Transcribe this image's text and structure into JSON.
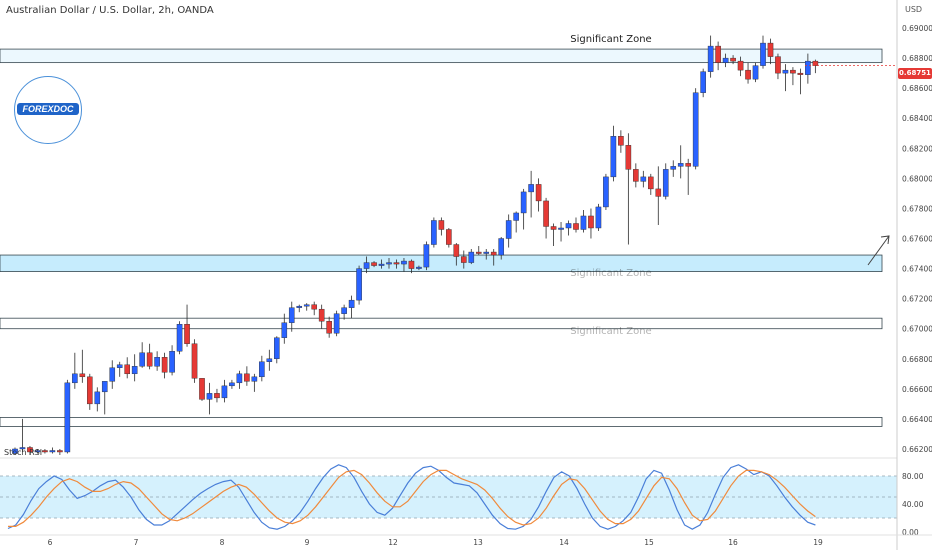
{
  "title": "Australian Dollar / U.S. Dollar, 2h, OANDA",
  "currency_label": "USD",
  "logo_text": "FOREXDOC",
  "colors": {
    "up": "#2962ff",
    "down": "#e53935",
    "zone_fill": "#b3e5fc",
    "rsi_k": "#4a7fd8",
    "rsi_d": "#f08a3c",
    "price_tag": "#e53935"
  },
  "chart_data": [
    {
      "type": "candlestick",
      "title": "Australian Dollar / U.S. Dollar, 2h, OANDA",
      "ylim": [
        0.6614,
        0.6914
      ],
      "y_ticks": [
        "0.69000",
        "0.68800",
        "0.68600",
        "0.68400",
        "0.68200",
        "0.68000",
        "0.67800",
        "0.67600",
        "0.67400",
        "0.67200",
        "0.67000",
        "0.66800",
        "0.66600",
        "0.66400",
        "0.66200"
      ],
      "x_ticks": [
        "6",
        "7",
        "8",
        "9",
        "12",
        "13",
        "14",
        "15",
        "16",
        "19"
      ],
      "last_price": "0.68751",
      "zones": [
        {
          "label": "Significant Zone",
          "low": 0.6877,
          "high": 0.6886
        },
        {
          "label": "Significant Zone",
          "low": 0.6738,
          "high": 0.6749
        },
        {
          "label": "Significant Zone",
          "low": 0.67,
          "high": 0.6707
        },
        {
          "label": "",
          "low": 0.6635,
          "high": 0.6641
        }
      ],
      "candles": [
        [
          0.6617,
          0.6621,
          0.6616,
          0.662
        ],
        [
          0.662,
          0.664,
          0.6618,
          0.6621
        ],
        [
          0.6621,
          0.6622,
          0.6616,
          0.6618
        ],
        [
          0.6618,
          0.662,
          0.6617,
          0.6619
        ],
        [
          0.6619,
          0.662,
          0.6617,
          0.6618
        ],
        [
          0.6618,
          0.6621,
          0.6617,
          0.6619
        ],
        [
          0.6619,
          0.662,
          0.6616,
          0.6618
        ],
        [
          0.6618,
          0.6666,
          0.6617,
          0.6664
        ],
        [
          0.6664,
          0.6684,
          0.666,
          0.667
        ],
        [
          0.667,
          0.6686,
          0.6664,
          0.6668
        ],
        [
          0.6668,
          0.667,
          0.6646,
          0.665
        ],
        [
          0.665,
          0.6661,
          0.6645,
          0.6658
        ],
        [
          0.6658,
          0.6665,
          0.6643,
          0.6665
        ],
        [
          0.6665,
          0.6679,
          0.666,
          0.6674
        ],
        [
          0.6674,
          0.6678,
          0.6668,
          0.6676
        ],
        [
          0.6676,
          0.6681,
          0.6667,
          0.667
        ],
        [
          0.667,
          0.6683,
          0.6665,
          0.6675
        ],
        [
          0.6675,
          0.6691,
          0.6674,
          0.6684
        ],
        [
          0.6684,
          0.669,
          0.6673,
          0.6675
        ],
        [
          0.6675,
          0.6685,
          0.6672,
          0.6681
        ],
        [
          0.6681,
          0.6684,
          0.6667,
          0.6671
        ],
        [
          0.6671,
          0.6689,
          0.6669,
          0.6685
        ],
        [
          0.6685,
          0.6705,
          0.6683,
          0.6703
        ],
        [
          0.6703,
          0.6716,
          0.6688,
          0.669
        ],
        [
          0.669,
          0.6693,
          0.6664,
          0.6667
        ],
        [
          0.6667,
          0.6667,
          0.6652,
          0.6653
        ],
        [
          0.6653,
          0.6664,
          0.6643,
          0.6657
        ],
        [
          0.6657,
          0.666,
          0.6651,
          0.6654
        ],
        [
          0.6654,
          0.6666,
          0.6651,
          0.6662
        ],
        [
          0.6662,
          0.6666,
          0.666,
          0.6664
        ],
        [
          0.6664,
          0.6672,
          0.666,
          0.667
        ],
        [
          0.667,
          0.6675,
          0.6662,
          0.6665
        ],
        [
          0.6665,
          0.667,
          0.6658,
          0.6668
        ],
        [
          0.6668,
          0.6682,
          0.6665,
          0.6678
        ],
        [
          0.6678,
          0.6686,
          0.6672,
          0.668
        ],
        [
          0.668,
          0.6695,
          0.6677,
          0.6694
        ],
        [
          0.6694,
          0.671,
          0.669,
          0.6704
        ],
        [
          0.6704,
          0.6718,
          0.6698,
          0.6714
        ],
        [
          0.6714,
          0.6716,
          0.6711,
          0.6715
        ],
        [
          0.6715,
          0.6717,
          0.6712,
          0.6716
        ],
        [
          0.6716,
          0.6718,
          0.6709,
          0.6713
        ],
        [
          0.6713,
          0.6716,
          0.67,
          0.6705
        ],
        [
          0.6705,
          0.6708,
          0.6694,
          0.6697
        ],
        [
          0.6697,
          0.6712,
          0.6695,
          0.671
        ],
        [
          0.671,
          0.6716,
          0.6706,
          0.6714
        ],
        [
          0.6714,
          0.6722,
          0.6707,
          0.6719
        ],
        [
          0.6719,
          0.6742,
          0.6716,
          0.674
        ],
        [
          0.674,
          0.6748,
          0.6737,
          0.6744
        ],
        [
          0.6744,
          0.6745,
          0.6741,
          0.6742
        ],
        [
          0.6742,
          0.6746,
          0.674,
          0.6743
        ],
        [
          0.6743,
          0.6747,
          0.674,
          0.6744
        ],
        [
          0.6744,
          0.6746,
          0.674,
          0.6743
        ],
        [
          0.6743,
          0.6747,
          0.6738,
          0.6745
        ],
        [
          0.6745,
          0.6746,
          0.6737,
          0.674
        ],
        [
          0.674,
          0.6742,
          0.6739,
          0.6741
        ],
        [
          0.6741,
          0.6758,
          0.6739,
          0.6756
        ],
        [
          0.6756,
          0.6774,
          0.6754,
          0.6772
        ],
        [
          0.6772,
          0.6774,
          0.6762,
          0.6766
        ],
        [
          0.6766,
          0.6767,
          0.6754,
          0.6756
        ],
        [
          0.6756,
          0.6757,
          0.6742,
          0.6748
        ],
        [
          0.6748,
          0.6752,
          0.674,
          0.6744
        ],
        [
          0.6744,
          0.6753,
          0.6743,
          0.6751
        ],
        [
          0.6751,
          0.6755,
          0.6749,
          0.675
        ],
        [
          0.675,
          0.6753,
          0.6746,
          0.6751
        ],
        [
          0.6751,
          0.6753,
          0.6742,
          0.6749
        ],
        [
          0.6749,
          0.6761,
          0.6746,
          0.676
        ],
        [
          0.676,
          0.6776,
          0.6754,
          0.6772
        ],
        [
          0.6772,
          0.6778,
          0.6764,
          0.6777
        ],
        [
          0.6777,
          0.6793,
          0.6766,
          0.6791
        ],
        [
          0.6791,
          0.6805,
          0.6774,
          0.6796
        ],
        [
          0.6796,
          0.68,
          0.6778,
          0.6785
        ],
        [
          0.6785,
          0.6787,
          0.676,
          0.6768
        ],
        [
          0.6768,
          0.677,
          0.6755,
          0.6766
        ],
        [
          0.6766,
          0.6771,
          0.6758,
          0.6767
        ],
        [
          0.6767,
          0.6772,
          0.6762,
          0.677
        ],
        [
          0.677,
          0.6774,
          0.6764,
          0.6766
        ],
        [
          0.6766,
          0.6779,
          0.6764,
          0.6775
        ],
        [
          0.6775,
          0.678,
          0.676,
          0.6767
        ],
        [
          0.6767,
          0.6783,
          0.6765,
          0.6781
        ],
        [
          0.6781,
          0.6803,
          0.6779,
          0.6801
        ],
        [
          0.6801,
          0.6835,
          0.6798,
          0.6828
        ],
        [
          0.6828,
          0.6832,
          0.6817,
          0.6822
        ],
        [
          0.6822,
          0.683,
          0.6756,
          0.6806
        ],
        [
          0.6806,
          0.681,
          0.6794,
          0.6798
        ],
        [
          0.6798,
          0.6805,
          0.6794,
          0.6801
        ],
        [
          0.6801,
          0.6803,
          0.6789,
          0.6793
        ],
        [
          0.6793,
          0.6808,
          0.6769,
          0.6788
        ],
        [
          0.6788,
          0.681,
          0.6786,
          0.6806
        ],
        [
          0.6806,
          0.6812,
          0.6801,
          0.6808
        ],
        [
          0.6808,
          0.6822,
          0.68,
          0.681
        ],
        [
          0.681,
          0.6813,
          0.6789,
          0.6808
        ],
        [
          0.6808,
          0.686,
          0.6806,
          0.6857
        ],
        [
          0.6857,
          0.6873,
          0.6854,
          0.6871
        ],
        [
          0.6871,
          0.6895,
          0.6867,
          0.6888
        ],
        [
          0.6888,
          0.6891,
          0.6872,
          0.6877
        ],
        [
          0.6877,
          0.6883,
          0.6874,
          0.688
        ],
        [
          0.688,
          0.6882,
          0.6876,
          0.6878
        ],
        [
          0.6878,
          0.6881,
          0.6868,
          0.6872
        ],
        [
          0.6872,
          0.6877,
          0.6863,
          0.6866
        ],
        [
          0.6866,
          0.6877,
          0.6864,
          0.6875
        ],
        [
          0.6875,
          0.6895,
          0.6873,
          0.689
        ],
        [
          0.689,
          0.6893,
          0.6876,
          0.6881
        ],
        [
          0.6881,
          0.6883,
          0.6866,
          0.687
        ],
        [
          0.687,
          0.6876,
          0.6858,
          0.6872
        ],
        [
          0.6872,
          0.6874,
          0.6862,
          0.687
        ],
        [
          0.687,
          0.6873,
          0.6856,
          0.6869
        ],
        [
          0.6869,
          0.6883,
          0.6863,
          0.6878
        ],
        [
          0.6878,
          0.6879,
          0.687,
          0.6875
        ]
      ]
    },
    {
      "type": "line",
      "title": "Stoch RSI",
      "ylim": [
        0,
        100
      ],
      "y_ticks": [
        "80.00",
        "40.00",
        "0.00"
      ],
      "bands": [
        20,
        50,
        80
      ],
      "series": [
        {
          "values": [
            5,
            10,
            25,
            45,
            62,
            72,
            80,
            75,
            60,
            48,
            52,
            58,
            66,
            72,
            74,
            64,
            50,
            32,
            18,
            10,
            10,
            16,
            26,
            36,
            46,
            55,
            62,
            68,
            72,
            74,
            64,
            46,
            28,
            14,
            6,
            4,
            8,
            16,
            28,
            44,
            62,
            78,
            90,
            96,
            92,
            78,
            58,
            40,
            28,
            24,
            34,
            52,
            70,
            84,
            92,
            94,
            88,
            78,
            70,
            68,
            66,
            56,
            40,
            24,
            12,
            5,
            4,
            8,
            18,
            36,
            58,
            78,
            86,
            80,
            62,
            40,
            20,
            8,
            4,
            8,
            16,
            28,
            50,
            76,
            88,
            84,
            60,
            32,
            10,
            4,
            10,
            28,
            54,
            78,
            92,
            96,
            90,
            82,
            86,
            80,
            66,
            50,
            36,
            24,
            14,
            10
          ]
        },
        {
          "values": [
            8,
            8,
            14,
            24,
            36,
            50,
            62,
            72,
            76,
            72,
            64,
            58,
            58,
            62,
            68,
            72,
            70,
            62,
            50,
            38,
            26,
            18,
            16,
            20,
            26,
            34,
            42,
            50,
            58,
            64,
            68,
            64,
            54,
            42,
            30,
            20,
            14,
            12,
            16,
            24,
            36,
            50,
            64,
            78,
            86,
            88,
            82,
            70,
            56,
            44,
            36,
            36,
            44,
            58,
            72,
            82,
            88,
            88,
            82,
            76,
            72,
            68,
            60,
            48,
            34,
            22,
            14,
            10,
            12,
            20,
            34,
            52,
            68,
            76,
            74,
            62,
            46,
            30,
            18,
            12,
            12,
            18,
            30,
            48,
            66,
            78,
            76,
            62,
            42,
            24,
            16,
            18,
            30,
            48,
            66,
            80,
            88,
            88,
            86,
            82,
            74,
            64,
            52,
            40,
            30,
            22
          ]
        }
      ]
    }
  ]
}
